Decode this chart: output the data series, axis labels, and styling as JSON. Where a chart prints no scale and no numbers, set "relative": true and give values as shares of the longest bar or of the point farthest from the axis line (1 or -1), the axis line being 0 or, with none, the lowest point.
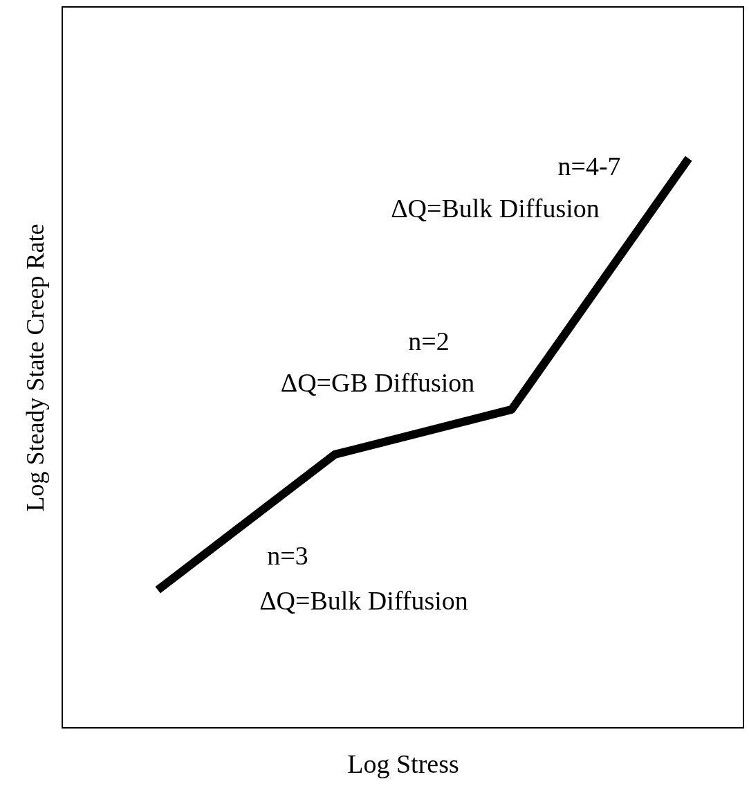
{
  "chart_data": {
    "type": "line",
    "relative": true,
    "xlabel": "Log Stress",
    "ylabel": "Log Steady State Creep Rate",
    "categories": [
      null,
      null,
      null,
      null
    ],
    "series": [
      {
        "color": "#000000",
        "values": [
          0.242,
          0.48,
          0.559,
          1.0
        ]
      }
    ],
    "annotations": [
      "n=4-7",
      "ΔQ=Bulk Diffusion",
      "n=2",
      "ΔQ=GB Diffusion",
      "n=3",
      "ΔQ=Bulk Diffusion"
    ],
    "grid": false,
    "marker": "none",
    "line_style": "solid"
  }
}
